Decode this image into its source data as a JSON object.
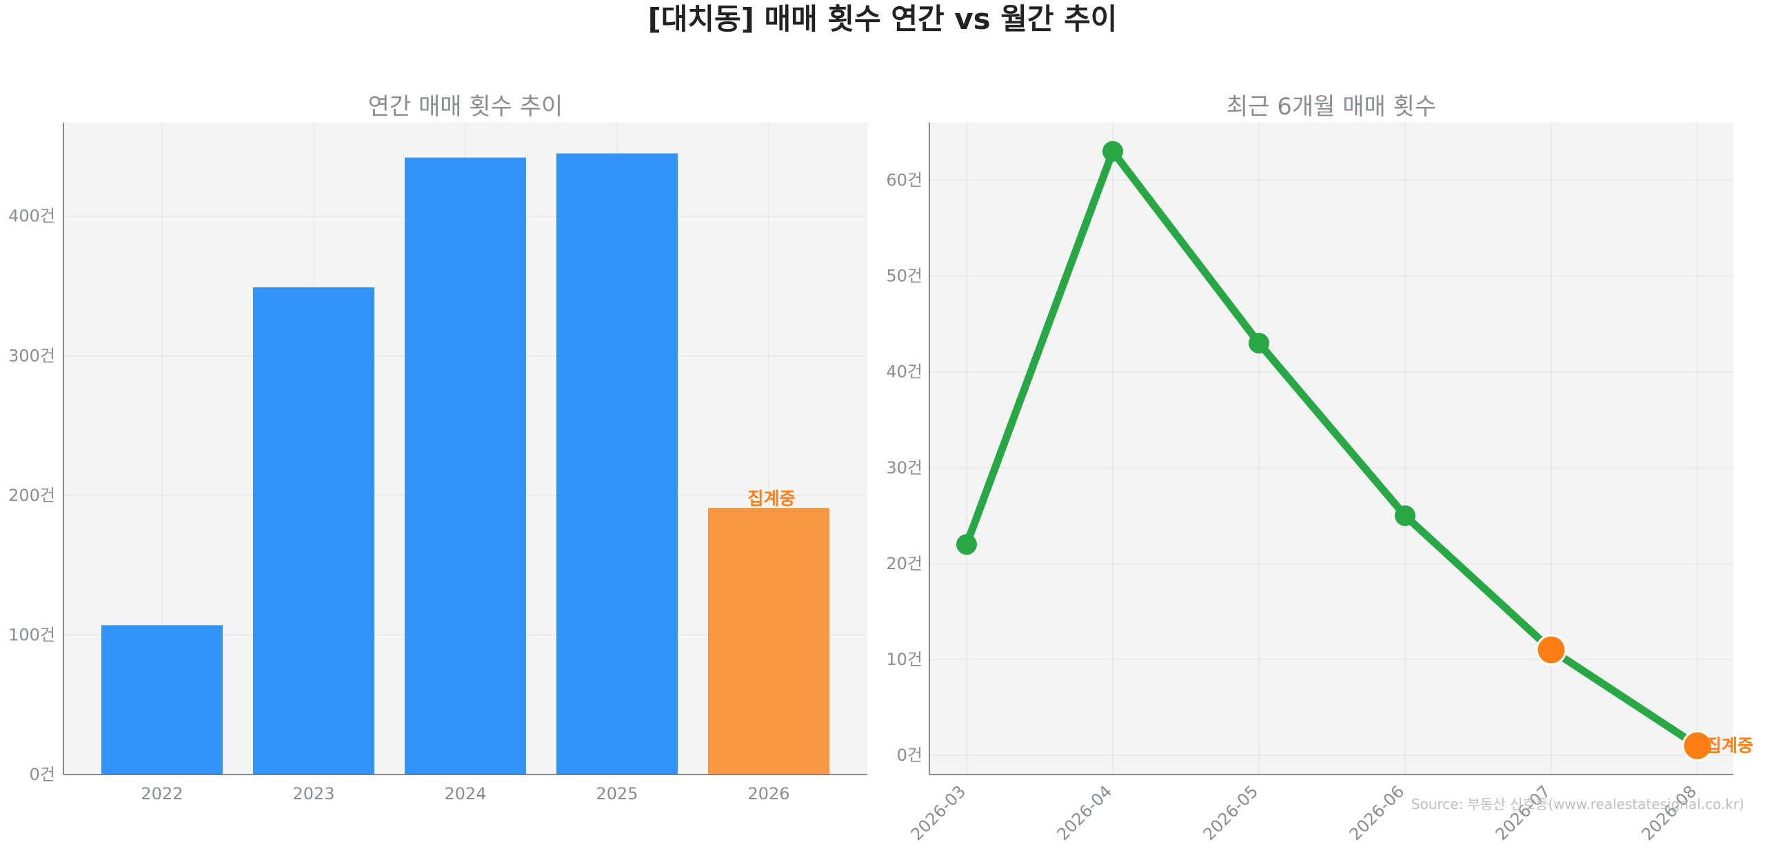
{
  "title": "[대치동] 매매 횟수 연간 vs 월간 추이",
  "source": "Source: 부동산 신호등(www.realestatesignal.co.kr)",
  "colors": {
    "bar": "#3293fb",
    "highlight": "#f99840",
    "line": "#28a745",
    "marker_highlight": "#fd7e14",
    "annotation": "#fd7e14",
    "panel_bg": "#f4f4f4",
    "muted_text": "#888d93",
    "title_text": "#222222"
  },
  "chart_data": [
    {
      "type": "bar",
      "title": "연간 매매 횟수 추이",
      "categories": [
        "2022",
        "2023",
        "2024",
        "2025",
        "2026"
      ],
      "values": [
        107,
        349,
        442,
        445,
        191
      ],
      "highlight_index": 4,
      "annotation": "집계중",
      "ylim": [
        0,
        467
      ],
      "yticks": [
        0,
        100,
        200,
        300,
        400
      ],
      "ytick_labels": [
        "0건",
        "100건",
        "200건",
        "300건",
        "400건"
      ],
      "grid": true
    },
    {
      "type": "line",
      "title": "최근 6개월 매매 횟수",
      "categories": [
        "2026-03",
        "2026-04",
        "2026-05",
        "2026-06",
        "2026-07",
        "2026-08"
      ],
      "values": [
        22,
        63,
        43,
        25,
        11,
        1
      ],
      "highlight_indices": [
        4,
        5
      ],
      "annotation": "집계중",
      "ylim": [
        -2,
        66
      ],
      "yticks": [
        0,
        10,
        20,
        30,
        40,
        50,
        60
      ],
      "ytick_labels": [
        "0건",
        "10건",
        "20건",
        "30건",
        "40건",
        "50건",
        "60건"
      ],
      "grid": true
    }
  ]
}
